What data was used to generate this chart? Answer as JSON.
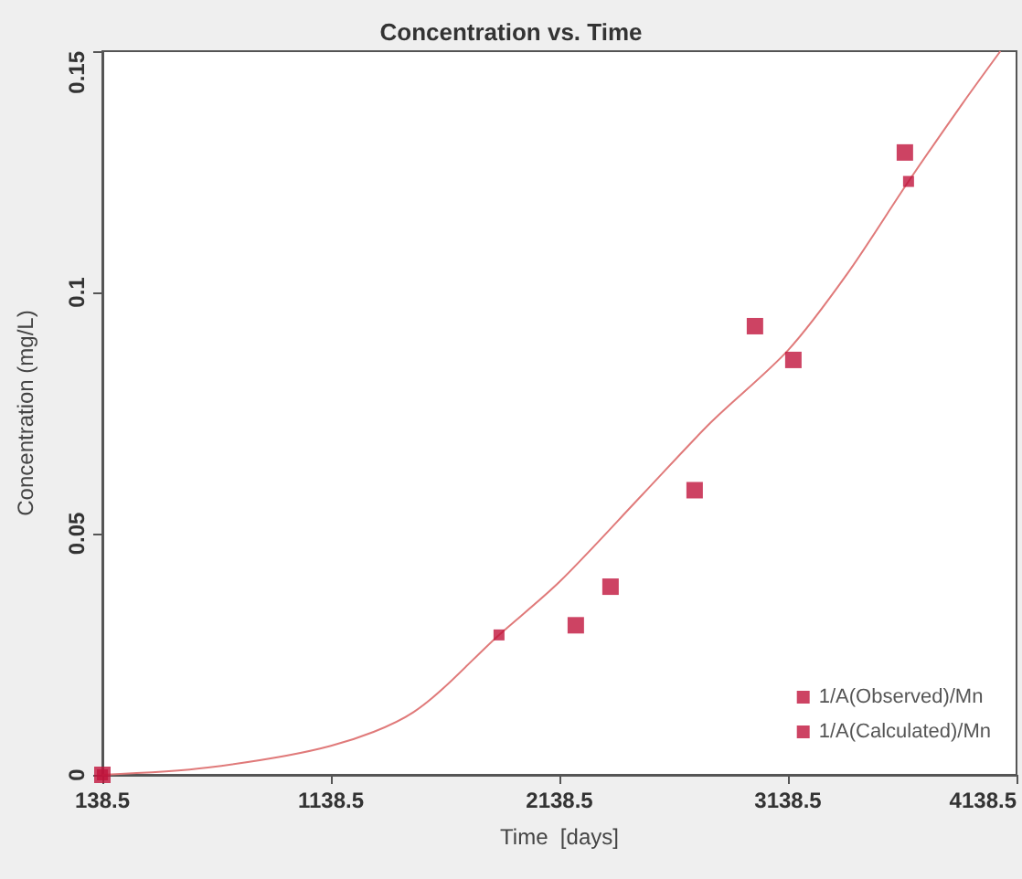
{
  "chart_data": {
    "type": "scatter",
    "title": "Concentration vs. Time",
    "xlabel": "Time  [days]",
    "ylabel": "Concentration (mg/L)",
    "xlim": [
      138.5,
      4138.5
    ],
    "xticks": [
      138.5,
      1138.5,
      2138.5,
      3138.5,
      4138.5
    ],
    "ylim": [
      0,
      0.15
    ],
    "yticks": [
      0,
      0.05,
      0.1,
      0.15
    ],
    "grid": false,
    "legend": "bottom right",
    "series": [
      {
        "name": "1/A(Observed)/Mn",
        "marker": "square",
        "color": "#c0143c",
        "x": [
          138.5,
          2210,
          2362,
          2730,
          2994,
          3162,
          3650
        ],
        "values": [
          0,
          0.031,
          0.039,
          0.059,
          0.093,
          0.086,
          0.129
        ]
      },
      {
        "name": "1/A(Calculated)/Mn",
        "marker": "square",
        "color": "#c0143c",
        "x": [
          138.5,
          1874,
          3666
        ],
        "values": [
          0,
          0.029,
          0.123
        ]
      },
      {
        "type": "line",
        "marker": "none",
        "color": "#e07a7a",
        "x": [
          138.5,
          600,
          1138.5,
          1500,
          1874,
          2138.5,
          2500,
          2800,
          3138.5,
          3400,
          3666,
          3900,
          4068
        ],
        "values": [
          0,
          0.0015,
          0.006,
          0.013,
          0.029,
          0.04,
          0.058,
          0.073,
          0.088,
          0.104,
          0.123,
          0.139,
          0.15
        ]
      }
    ]
  }
}
